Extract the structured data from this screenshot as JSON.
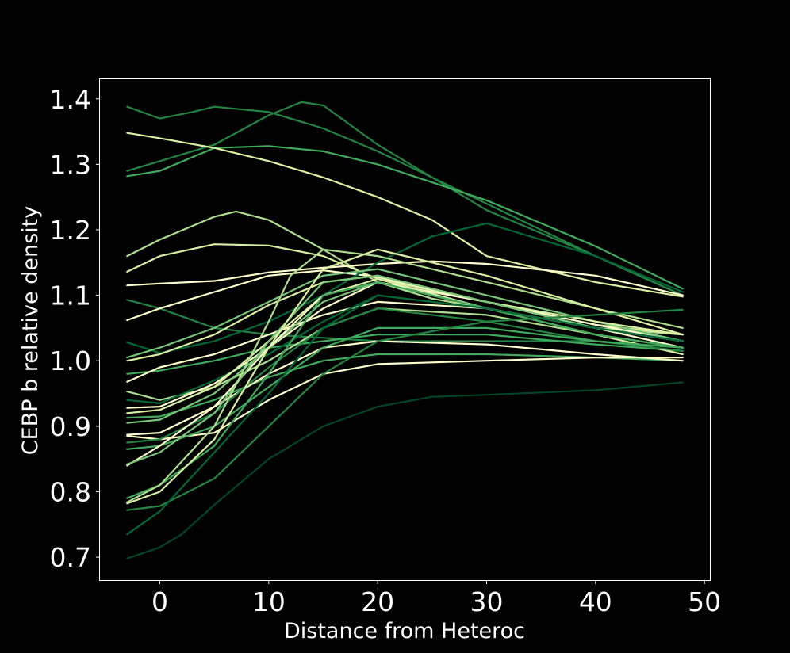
{
  "chart_data": {
    "type": "line",
    "title": "",
    "xlabel": "Distance from Heteroc",
    "ylabel": "CEBP b relative density",
    "xlim": [
      -5.5,
      50.5
    ],
    "ylim": [
      0.665,
      1.43
    ],
    "xticks": [
      0,
      10,
      20,
      30,
      40,
      50
    ],
    "yticks": [
      0.7,
      0.8,
      0.9,
      1.0,
      1.1,
      1.2,
      1.3,
      1.4
    ],
    "xtick_labels": [
      "0",
      "10",
      "20",
      "30",
      "40",
      "50"
    ],
    "ytick_labels": [
      "0.7",
      "0.8",
      "0.9",
      "1.0",
      "1.1",
      "1.2",
      "1.3",
      "1.4"
    ],
    "grid": false,
    "legend": false,
    "background": "#000000",
    "colormap_colors": [
      "#004529",
      "#006837",
      "#238443",
      "#41ab5d",
      "#78c679",
      "#addd8e",
      "#d9f0a3",
      "#ffffcc"
    ],
    "series": [
      {
        "x": [
          -3,
          0,
          3,
          5,
          10,
          15,
          20,
          30,
          40,
          48
        ],
        "y": [
          1.388,
          1.37,
          1.38,
          1.388,
          1.38,
          1.355,
          1.32,
          1.24,
          1.16,
          1.1
        ],
        "color": "#238443"
      },
      {
        "x": [
          -3,
          0,
          5,
          10,
          13,
          15,
          20,
          30,
          40,
          48
        ],
        "y": [
          1.29,
          1.305,
          1.33,
          1.375,
          1.395,
          1.39,
          1.33,
          1.23,
          1.16,
          1.1
        ],
        "color": "#238443"
      },
      {
        "x": [
          -3,
          0,
          5,
          10,
          15,
          20,
          30,
          40,
          48
        ],
        "y": [
          1.282,
          1.29,
          1.325,
          1.328,
          1.32,
          1.3,
          1.245,
          1.175,
          1.11
        ],
        "color": "#41ab5d"
      },
      {
        "x": [
          -3,
          0,
          5,
          10,
          15,
          20,
          25,
          30,
          40,
          48
        ],
        "y": [
          1.348,
          1.34,
          1.325,
          1.305,
          1.28,
          1.25,
          1.215,
          1.16,
          1.12,
          1.098
        ],
        "color": "#d9f0a3"
      },
      {
        "x": [
          -3,
          0,
          5,
          7,
          10,
          15,
          20,
          25,
          30,
          40,
          48
        ],
        "y": [
          1.16,
          1.185,
          1.22,
          1.228,
          1.215,
          1.17,
          1.12,
          1.095,
          1.08,
          1.05,
          1.04
        ],
        "color": "#addd8e"
      },
      {
        "x": [
          -3,
          0,
          5,
          10,
          15,
          20,
          30,
          40,
          48
        ],
        "y": [
          1.136,
          1.16,
          1.178,
          1.176,
          1.16,
          1.125,
          1.09,
          1.055,
          1.04
        ],
        "color": "#d9f0a3"
      },
      {
        "x": [
          -3,
          0,
          5,
          10,
          15,
          20,
          25,
          30,
          40,
          48
        ],
        "y": [
          1.115,
          1.118,
          1.122,
          1.135,
          1.142,
          1.148,
          1.152,
          1.148,
          1.13,
          1.1
        ],
        "color": "#ffffcc"
      },
      {
        "x": [
          -3,
          0,
          5,
          10,
          15,
          20,
          30,
          40,
          48
        ],
        "y": [
          1.093,
          1.08,
          1.05,
          1.04,
          1.035,
          1.03,
          1.03,
          1.03,
          1.02
        ],
        "color": "#238443"
      },
      {
        "x": [
          -3,
          0,
          5,
          10,
          15,
          20,
          30,
          40,
          48
        ],
        "y": [
          1.062,
          1.08,
          1.105,
          1.13,
          1.138,
          1.128,
          1.09,
          1.055,
          1.03
        ],
        "color": "#ffffcc"
      },
      {
        "x": [
          -3,
          0,
          5,
          10,
          15,
          20,
          25,
          30,
          40,
          48
        ],
        "y": [
          1.028,
          1.012,
          1.03,
          1.06,
          1.1,
          1.15,
          1.19,
          1.21,
          1.16,
          1.105
        ],
        "color": "#006837"
      },
      {
        "x": [
          -3,
          0,
          5,
          10,
          15,
          20,
          30,
          40,
          48
        ],
        "y": [
          1.005,
          1.02,
          1.05,
          1.09,
          1.13,
          1.14,
          1.1,
          1.06,
          1.03
        ],
        "color": "#78c679"
      },
      {
        "x": [
          -3,
          0,
          5,
          10,
          15,
          20,
          30,
          40,
          48
        ],
        "y": [
          1.0,
          1.01,
          1.04,
          1.085,
          1.12,
          1.13,
          1.09,
          1.06,
          1.04
        ],
        "color": "#d9f0a3"
      },
      {
        "x": [
          -3,
          0,
          5,
          10,
          15,
          20,
          30,
          40,
          48
        ],
        "y": [
          0.98,
          0.985,
          1.0,
          1.02,
          1.03,
          1.04,
          1.04,
          1.025,
          1.015
        ],
        "color": "#41ab5d"
      },
      {
        "x": [
          -3,
          0,
          5,
          10,
          15,
          20,
          30,
          40,
          48
        ],
        "y": [
          0.968,
          0.99,
          1.01,
          1.04,
          1.07,
          1.09,
          1.08,
          1.05,
          1.03
        ],
        "color": "#ffffcc"
      },
      {
        "x": [
          -3,
          0,
          5,
          10,
          15,
          20,
          30,
          40,
          48
        ],
        "y": [
          0.953,
          0.94,
          0.96,
          1.0,
          1.05,
          1.08,
          1.07,
          1.04,
          1.02
        ],
        "color": "#addd8e"
      },
      {
        "x": [
          -3,
          0,
          5,
          10,
          15,
          20,
          30,
          40,
          48
        ],
        "y": [
          0.94,
          0.935,
          0.97,
          1.01,
          1.06,
          1.1,
          1.08,
          1.05,
          1.02
        ],
        "color": "#006837"
      },
      {
        "x": [
          -3,
          0,
          5,
          10,
          15,
          20,
          30,
          40,
          48
        ],
        "y": [
          0.928,
          0.93,
          0.965,
          1.02,
          1.08,
          1.12,
          1.09,
          1.05,
          1.02
        ],
        "color": "#ffffcc"
      },
      {
        "x": [
          -3,
          0,
          5,
          10,
          15,
          20,
          30,
          40,
          48
        ],
        "y": [
          0.92,
          0.925,
          0.96,
          1.03,
          1.1,
          1.125,
          1.08,
          1.04,
          1.01
        ],
        "color": "#d9f0a3"
      },
      {
        "x": [
          -3,
          0,
          5,
          10,
          15,
          20,
          30,
          40,
          48
        ],
        "y": [
          0.913,
          0.915,
          0.94,
          0.975,
          1.0,
          1.01,
          1.01,
          1.005,
          1.0
        ],
        "color": "#41ab5d"
      },
      {
        "x": [
          -3,
          0,
          5,
          10,
          15,
          20,
          30,
          40,
          48
        ],
        "y": [
          0.905,
          0.91,
          0.95,
          1.02,
          1.09,
          1.12,
          1.08,
          1.04,
          1.02
        ],
        "color": "#78c679"
      },
      {
        "x": [
          -3,
          0,
          5,
          10,
          15,
          20,
          30,
          40,
          48
        ],
        "y": [
          0.887,
          0.89,
          0.93,
          0.98,
          1.02,
          1.03,
          1.025,
          1.01,
          1.0
        ],
        "color": "#ffffcc"
      },
      {
        "x": [
          -3,
          0,
          5,
          10,
          15,
          20,
          30,
          40,
          48
        ],
        "y": [
          0.885,
          0.88,
          0.89,
          0.94,
          0.98,
          0.995,
          1.0,
          1.005,
          1.005
        ],
        "color": "#ffffcc"
      },
      {
        "x": [
          -3,
          0,
          5,
          10,
          15,
          20,
          30,
          40,
          48
        ],
        "y": [
          0.875,
          0.88,
          0.92,
          0.99,
          1.05,
          1.08,
          1.06,
          1.03,
          1.015
        ],
        "color": "#238443"
      },
      {
        "x": [
          -3,
          0,
          5,
          10,
          15,
          20,
          30,
          40,
          48
        ],
        "y": [
          0.865,
          0.87,
          0.9,
          0.96,
          1.02,
          1.05,
          1.05,
          1.03,
          1.02
        ],
        "color": "#41ab5d"
      },
      {
        "x": [
          -3,
          0,
          5,
          10,
          15,
          20,
          30,
          40,
          48
        ],
        "y": [
          0.84,
          0.87,
          0.93,
          1.02,
          1.1,
          1.12,
          1.08,
          1.05,
          1.03
        ],
        "color": "#ffffcc"
      },
      {
        "x": [
          -3,
          0,
          5,
          10,
          15,
          20,
          30,
          40,
          48
        ],
        "y": [
          0.842,
          0.86,
          0.92,
          1.03,
          1.12,
          1.13,
          1.09,
          1.05,
          1.03
        ],
        "color": "#78c679"
      },
      {
        "x": [
          -3,
          0,
          5,
          10,
          15,
          20,
          30,
          40,
          48
        ],
        "y": [
          0.79,
          0.81,
          0.87,
          0.98,
          1.1,
          1.12,
          1.08,
          1.04,
          1.02
        ],
        "color": "#41ab5d"
      },
      {
        "x": [
          -3,
          0,
          5,
          10,
          12,
          15,
          20,
          30,
          40,
          48
        ],
        "y": [
          0.784,
          0.81,
          0.9,
          1.06,
          1.13,
          1.17,
          1.16,
          1.12,
          1.08,
          1.05
        ],
        "color": "#addd8e"
      },
      {
        "x": [
          -3,
          0,
          5,
          10,
          15,
          20,
          30,
          40,
          48
        ],
        "y": [
          0.782,
          0.8,
          0.88,
          1.02,
          1.14,
          1.17,
          1.13,
          1.08,
          1.04
        ],
        "color": "#d9f0a3"
      },
      {
        "x": [
          -3,
          0,
          5,
          10,
          15,
          20,
          30,
          40,
          48
        ],
        "y": [
          0.772,
          0.778,
          0.82,
          0.9,
          0.98,
          1.03,
          1.06,
          1.07,
          1.078
        ],
        "color": "#238443"
      },
      {
        "x": [
          -3,
          0,
          5,
          10,
          15,
          20,
          30,
          40,
          48
        ],
        "y": [
          0.735,
          0.77,
          0.86,
          0.95,
          1.05,
          1.1,
          1.08,
          1.05,
          1.03
        ],
        "color": "#006837"
      },
      {
        "x": [
          -3,
          0,
          2,
          5,
          10,
          15,
          20,
          25,
          30,
          40,
          48
        ],
        "y": [
          0.698,
          0.715,
          0.735,
          0.78,
          0.85,
          0.9,
          0.93,
          0.945,
          0.948,
          0.955,
          0.967
        ],
        "color": "#004529"
      }
    ]
  }
}
